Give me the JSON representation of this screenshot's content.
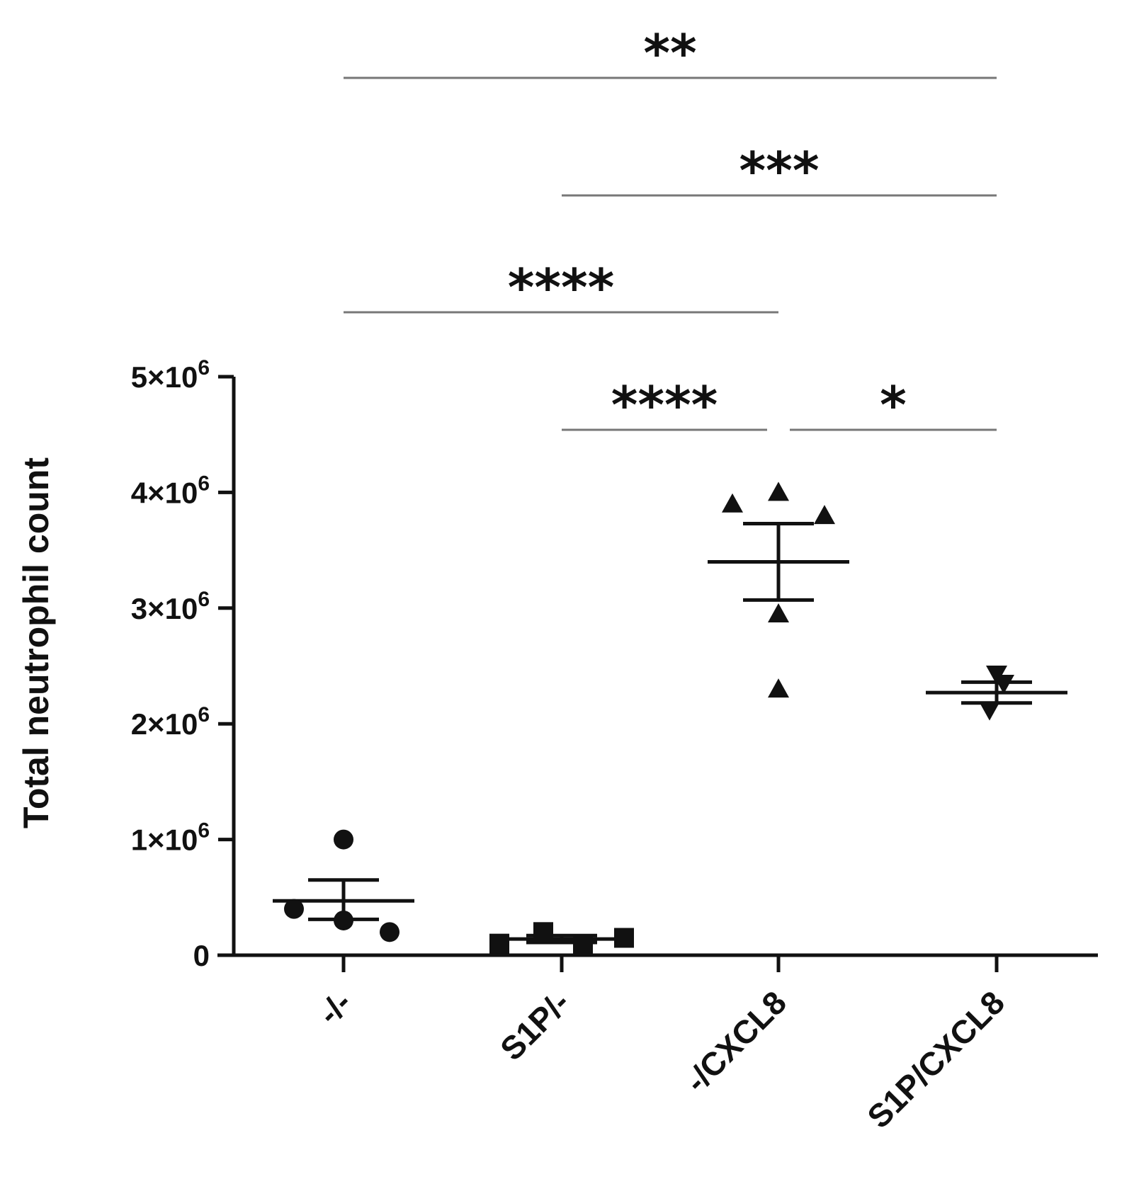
{
  "chart_data": {
    "type": "scatter",
    "ylabel": "Total neutrophil count",
    "xlabel": "",
    "ylim": [
      0,
      5000000
    ],
    "yticks": [
      {
        "value": 0,
        "base": "0",
        "exp": ""
      },
      {
        "value": 1000000,
        "base": "1×10",
        "exp": "6"
      },
      {
        "value": 2000000,
        "base": "2×10",
        "exp": "6"
      },
      {
        "value": 3000000,
        "base": "3×10",
        "exp": "6"
      },
      {
        "value": 4000000,
        "base": "4×10",
        "exp": "6"
      },
      {
        "value": 5000000,
        "base": "5×10",
        "exp": "6"
      }
    ],
    "categories": [
      "-/-",
      "S1P/-",
      "-/CXCL8",
      "S1P/CXCL8"
    ],
    "series": [
      {
        "category": "-/-",
        "marker": "circle",
        "points": [
          1000000,
          300000,
          400000,
          200000
        ],
        "mean": 470000,
        "sem_low": 310000,
        "sem_high": 650000
      },
      {
        "category": "S1P/-",
        "marker": "square",
        "points": [
          100000,
          200000,
          80000,
          150000
        ],
        "mean": 140000,
        "sem_low": 110000,
        "sem_high": 170000
      },
      {
        "category": "-/CXCL8",
        "marker": "triangle-up",
        "points": [
          3900000,
          4000000,
          3800000,
          2950000,
          2300000
        ],
        "mean": 3400000,
        "sem_low": 3070000,
        "sem_high": 3730000
      },
      {
        "category": "S1P/CXCL8",
        "marker": "triangle-down",
        "points": [
          2430000,
          2350000,
          2120000
        ],
        "mean": 2270000,
        "sem_low": 2180000,
        "sem_high": 2360000
      }
    ],
    "significance": [
      {
        "from": 0,
        "to": 3,
        "label": "**"
      },
      {
        "from": 1,
        "to": 3,
        "label": "***"
      },
      {
        "from": 0,
        "to": 2,
        "label": "****"
      },
      {
        "from": 1,
        "to": 2,
        "label": "****"
      },
      {
        "from": 2,
        "to": 3,
        "label": "*"
      }
    ],
    "grid": false,
    "legend": "none"
  }
}
